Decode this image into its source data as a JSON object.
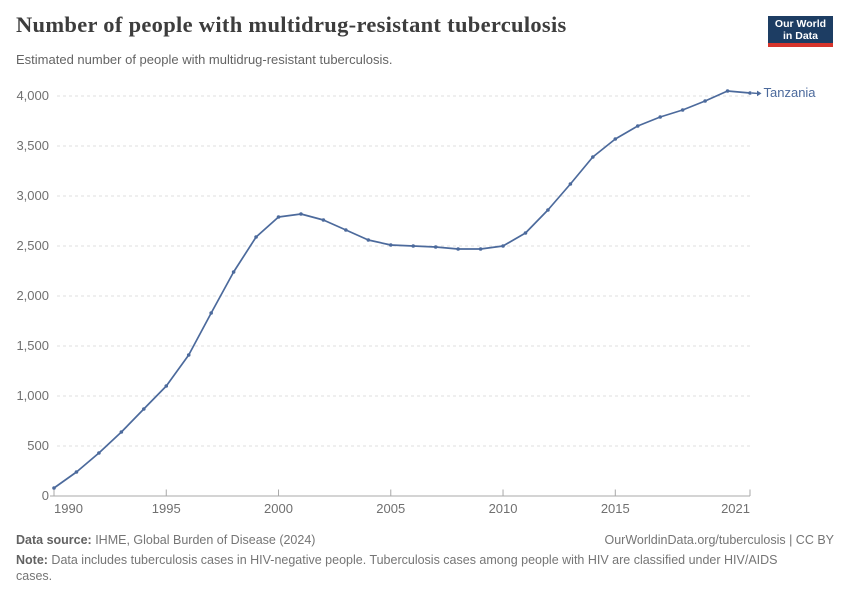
{
  "header": {
    "title": "Number of people with multidrug-resistant tuberculosis",
    "subtitle": "Estimated number of people with multidrug-resistant tuberculosis.",
    "logo_line1": "Our World",
    "logo_line2": "in Data"
  },
  "colors": {
    "line": "#4c6a9c",
    "logo_bg": "#1d3d63",
    "logo_accent": "#d7352c",
    "grid": "#dfdfdf",
    "axis": "#a8a8a8",
    "tick_text": "#707070",
    "title_text": "#3d3d3d",
    "footer_text": "#757575"
  },
  "chart_data": {
    "type": "line",
    "title": "Number of people with multidrug-resistant tuberculosis",
    "subtitle": "Estimated number of people with multidrug-resistant tuberculosis.",
    "xlabel": "",
    "ylabel": "",
    "xlim": [
      1990,
      2021
    ],
    "ylim": [
      0,
      4000
    ],
    "grid": "horizontal-dashed",
    "legend_position": "end-of-line-label",
    "x_ticks": [
      1990,
      1995,
      2000,
      2005,
      2010,
      2015,
      2021
    ],
    "y_ticks": [
      0,
      500,
      1000,
      1500,
      2000,
      2500,
      3000,
      3500,
      4000
    ],
    "y_tick_labels": [
      "0",
      "500",
      "1,000",
      "1,500",
      "2,000",
      "2,500",
      "3,000",
      "3,500",
      "4,000"
    ],
    "series": [
      {
        "name": "Tanzania",
        "color": "#4c6a9c",
        "x": [
          1990,
          1991,
          1992,
          1993,
          1994,
          1995,
          1996,
          1997,
          1998,
          1999,
          2000,
          2001,
          2002,
          2003,
          2004,
          2005,
          2006,
          2007,
          2008,
          2009,
          2010,
          2011,
          2012,
          2013,
          2014,
          2015,
          2016,
          2017,
          2018,
          2019,
          2020,
          2021
        ],
        "values": [
          80,
          240,
          430,
          640,
          870,
          1100,
          1410,
          1830,
          2240,
          2590,
          2790,
          2820,
          2760,
          2660,
          2560,
          2510,
          2500,
          2490,
          2470,
          2470,
          2500,
          2630,
          2860,
          3120,
          3390,
          3570,
          3700,
          3790,
          3860,
          3950,
          4050,
          4030
        ]
      }
    ]
  },
  "footer": {
    "source_label": "Data source:",
    "source_text": " IHME, Global Burden of Disease (2024)",
    "attribution": "OurWorldinData.org/tuberculosis | CC BY",
    "note_label": "Note:",
    "note_text": " Data includes tuberculosis cases in HIV-negative people. Tuberculosis cases among people with HIV are classified under HIV/AIDS cases."
  }
}
